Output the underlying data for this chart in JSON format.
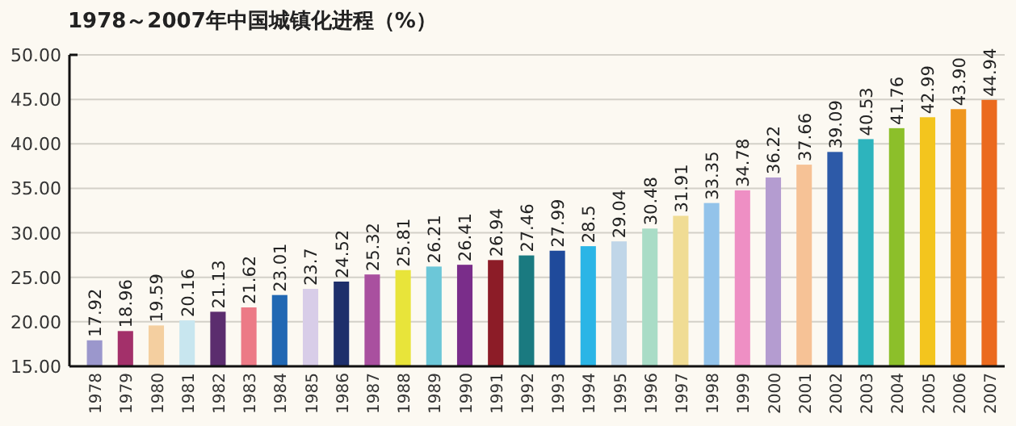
{
  "chart_data": {
    "type": "bar",
    "title": "1978～2007年中国城镇化进程（%）",
    "categories": [
      "1978",
      "1979",
      "1980",
      "1981",
      "1982",
      "1983",
      "1984",
      "1985",
      "1986",
      "1987",
      "1988",
      "1989",
      "1990",
      "1991",
      "1992",
      "1993",
      "1994",
      "1995",
      "1996",
      "1997",
      "1998",
      "1999",
      "2000",
      "2001",
      "2002",
      "2003",
      "2004",
      "2005",
      "2006",
      "2007"
    ],
    "values": [
      17.92,
      18.96,
      19.59,
      20.16,
      21.13,
      21.62,
      23.01,
      23.7,
      24.52,
      25.32,
      25.81,
      26.21,
      26.41,
      26.94,
      27.46,
      27.99,
      28.5,
      29.04,
      30.48,
      31.91,
      33.35,
      34.78,
      36.22,
      37.66,
      39.09,
      40.53,
      41.76,
      42.99,
      43.9,
      44.94
    ],
    "value_labels": [
      "17.92",
      "18.96",
      "19.59",
      "20.16",
      "21.13",
      "21.62",
      "23.01",
      "23.7",
      "24.52",
      "25.32",
      "25.81",
      "26.21",
      "26.41",
      "26.94",
      "27.46",
      "27.99",
      "28.5",
      "29.04",
      "30.48",
      "31.91",
      "33.35",
      "34.78",
      "36.22",
      "37.66",
      "39.09",
      "40.53",
      "41.76",
      "42.99",
      "43.90",
      "44.94"
    ],
    "colors": [
      "#9b97cc",
      "#a3306a",
      "#f4cfa0",
      "#c8e6ef",
      "#5b2d6e",
      "#ec7a86",
      "#2168b3",
      "#d8cde8",
      "#1e2f6b",
      "#a9509f",
      "#e8e43a",
      "#6cc7d8",
      "#7a2d8a",
      "#8c1c27",
      "#1a7a80",
      "#1f4a9b",
      "#2bb5e6",
      "#c0d6e8",
      "#a9dcc6",
      "#f0dc94",
      "#93c3ea",
      "#ee8fc4",
      "#b49cd0",
      "#f6c296",
      "#2d5aa8",
      "#2db4bd",
      "#8cbf2a",
      "#f3c51e",
      "#ef961e",
      "#eb6a1e"
    ],
    "ylim": [
      15,
      50
    ],
    "yticks": [
      {
        "value": 15,
        "label": "15.00"
      },
      {
        "value": 20,
        "label": "20.00"
      },
      {
        "value": 25,
        "label": "25.00"
      },
      {
        "value": 30,
        "label": "30.00"
      },
      {
        "value": 35,
        "label": "35.00"
      },
      {
        "value": 40,
        "label": "40.00"
      },
      {
        "value": 45,
        "label": "45.00"
      },
      {
        "value": 50,
        "label": "50.00"
      }
    ],
    "grid": "y"
  }
}
